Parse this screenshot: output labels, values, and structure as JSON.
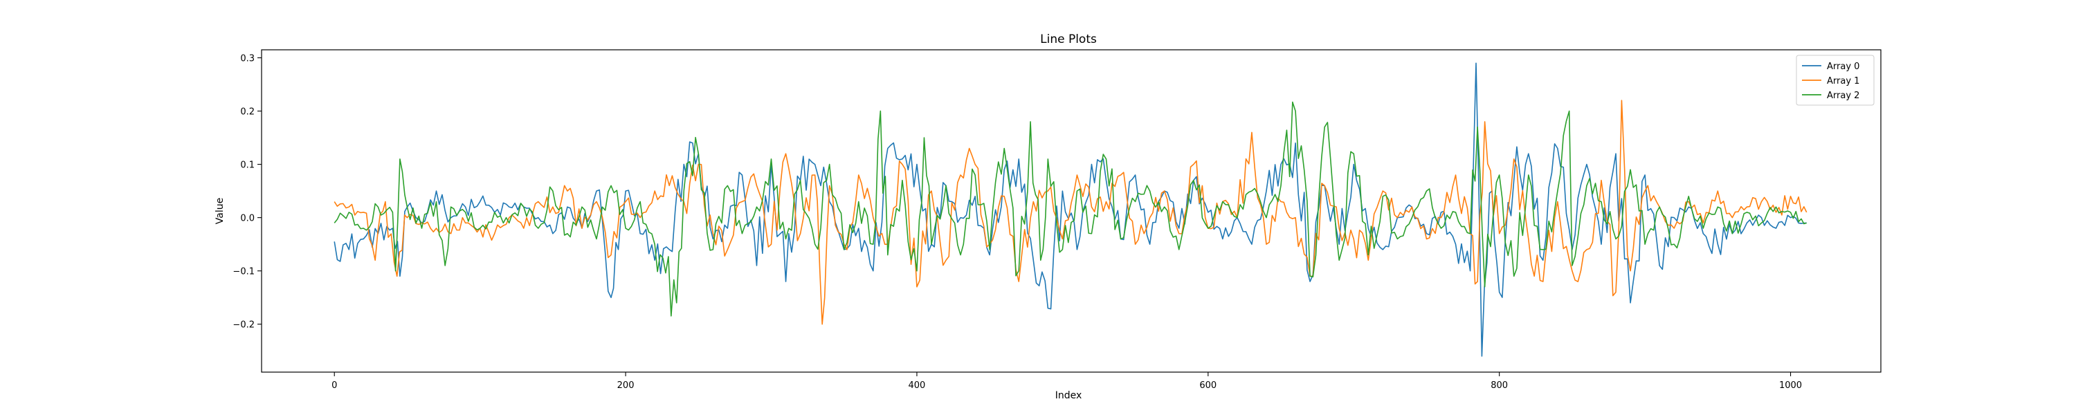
{
  "chart_data": {
    "type": "line",
    "title": "Line Plots",
    "xlabel": "Index",
    "ylabel": "Value",
    "xlim": [
      -50,
      1062
    ],
    "ylim": [
      -0.29,
      0.315
    ],
    "xticks": [
      0,
      200,
      400,
      600,
      800,
      1000
    ],
    "yticks": [
      -0.2,
      -0.1,
      0.0,
      0.1,
      0.2,
      0.3
    ],
    "ytick_labels": [
      "−0.2",
      "−0.1",
      "0.0",
      "0.1",
      "0.2",
      "0.3"
    ],
    "legend_position": "upper right",
    "x_count": 1012,
    "series": [
      {
        "name": "Array 0",
        "color": "#1f77b4",
        "x": [
          0,
          10,
          20,
          30,
          40,
          45,
          50,
          60,
          70,
          80,
          90,
          100,
          110,
          120,
          130,
          140,
          150,
          160,
          170,
          180,
          190,
          195,
          200,
          210,
          220,
          230,
          240,
          250,
          260,
          270,
          280,
          290,
          300,
          310,
          320,
          330,
          340,
          350,
          360,
          370,
          380,
          390,
          400,
          410,
          420,
          430,
          440,
          450,
          460,
          470,
          480,
          490,
          500,
          510,
          520,
          530,
          540,
          550,
          560,
          570,
          580,
          590,
          600,
          610,
          620,
          630,
          640,
          650,
          660,
          670,
          680,
          690,
          700,
          710,
          720,
          730,
          740,
          750,
          760,
          770,
          780,
          784,
          788,
          795,
          800,
          810,
          820,
          830,
          840,
          850,
          860,
          870,
          880,
          890,
          900,
          910,
          920,
          930,
          940,
          950,
          960,
          970,
          980,
          990,
          1000,
          1011
        ],
        "y": [
          -0.045,
          -0.06,
          -0.04,
          -0.03,
          -0.02,
          -0.11,
          0.02,
          -0.01,
          0.05,
          0.0,
          0.02,
          0.03,
          0.01,
          0.02,
          0.02,
          0.0,
          -0.03,
          0.02,
          -0.02,
          0.05,
          -0.15,
          -0.06,
          0.05,
          -0.03,
          -0.08,
          -0.06,
          0.1,
          0.12,
          -0.04,
          -0.02,
          0.08,
          -0.09,
          0.1,
          -0.12,
          0.07,
          0.1,
          0.03,
          -0.06,
          -0.02,
          -0.1,
          0.13,
          0.11,
          0.1,
          -0.05,
          0.06,
          0.0,
          0.04,
          -0.07,
          0.09,
          0.11,
          -0.08,
          -0.17,
          0.05,
          -0.06,
          0.1,
          0.07,
          -0.04,
          0.08,
          -0.05,
          0.05,
          -0.02,
          0.07,
          0.01,
          -0.04,
          0.0,
          -0.05,
          0.05,
          0.1,
          0.14,
          -0.12,
          0.06,
          -0.05,
          0.1,
          -0.02,
          -0.06,
          0.0,
          0.02,
          -0.03,
          0.01,
          -0.05,
          -0.1,
          0.29,
          -0.26,
          0.05,
          -0.14,
          0.07,
          0.12,
          -0.08,
          0.13,
          -0.06,
          0.1,
          -0.05,
          0.12,
          -0.16,
          0.08,
          -0.09,
          0.0,
          0.02,
          -0.03,
          -0.05,
          -0.03,
          -0.01,
          0.0,
          -0.02,
          0.0,
          -0.01
        ]
      },
      {
        "name": "Array 1",
        "color": "#ff7f0e",
        "x": [
          0,
          10,
          20,
          28,
          35,
          43,
          50,
          60,
          70,
          80,
          90,
          100,
          110,
          120,
          130,
          140,
          150,
          160,
          170,
          180,
          190,
          200,
          210,
          220,
          230,
          240,
          250,
          260,
          270,
          280,
          290,
          300,
          310,
          320,
          330,
          335,
          340,
          350,
          360,
          370,
          380,
          390,
          400,
          410,
          420,
          430,
          440,
          450,
          460,
          470,
          480,
          490,
          500,
          510,
          520,
          530,
          540,
          550,
          560,
          570,
          580,
          590,
          600,
          610,
          620,
          630,
          640,
          650,
          660,
          670,
          680,
          690,
          700,
          710,
          720,
          730,
          740,
          750,
          760,
          770,
          780,
          785,
          790,
          800,
          810,
          820,
          830,
          840,
          850,
          860,
          870,
          880,
          884,
          890,
          900,
          910,
          920,
          930,
          940,
          950,
          960,
          970,
          980,
          990,
          1000,
          1011
        ],
        "y": [
          0.03,
          0.02,
          0.01,
          -0.08,
          0.03,
          -0.11,
          0.0,
          -0.01,
          -0.02,
          -0.03,
          -0.01,
          -0.02,
          -0.03,
          0.0,
          -0.02,
          0.03,
          0.02,
          0.05,
          -0.02,
          0.03,
          -0.07,
          0.03,
          0.0,
          0.05,
          0.06,
          0.03,
          0.1,
          -0.03,
          -0.06,
          0.03,
          0.06,
          -0.05,
          0.12,
          -0.03,
          0.08,
          -0.2,
          0.06,
          -0.05,
          0.08,
          0.0,
          -0.05,
          0.1,
          -0.13,
          0.05,
          -0.08,
          0.08,
          0.1,
          -0.05,
          0.04,
          -0.12,
          0.03,
          0.05,
          -0.04,
          0.08,
          0.02,
          0.03,
          0.08,
          -0.05,
          0.0,
          0.05,
          -0.03,
          0.1,
          -0.02,
          0.03,
          0.0,
          0.16,
          -0.05,
          0.03,
          0.0,
          -0.11,
          0.06,
          -0.02,
          -0.04,
          -0.08,
          0.05,
          0.0,
          0.02,
          -0.04,
          0.0,
          0.08,
          -0.03,
          -0.12,
          0.18,
          -0.03,
          0.11,
          -0.04,
          -0.12,
          0.03,
          -0.1,
          -0.06,
          0.07,
          -0.14,
          0.22,
          -0.1,
          0.05,
          0.02,
          -0.02,
          0.03,
          -0.01,
          0.05,
          0.0,
          0.02,
          0.03,
          0.01,
          0.04,
          0.01
        ]
      },
      {
        "name": "Array 2",
        "color": "#2ca02c",
        "x": [
          0,
          10,
          20,
          30,
          40,
          42,
          45,
          50,
          60,
          70,
          76,
          80,
          90,
          100,
          110,
          120,
          130,
          140,
          150,
          160,
          170,
          180,
          190,
          200,
          210,
          220,
          235,
          240,
          250,
          260,
          270,
          280,
          290,
          300,
          310,
          320,
          330,
          340,
          350,
          360,
          370,
          375,
          380,
          390,
          400,
          405,
          410,
          420,
          430,
          440,
          450,
          460,
          470,
          478,
          485,
          490,
          500,
          510,
          520,
          530,
          540,
          550,
          560,
          570,
          580,
          590,
          600,
          610,
          620,
          630,
          640,
          650,
          660,
          670,
          680,
          690,
          700,
          710,
          720,
          730,
          740,
          750,
          760,
          770,
          780,
          785,
          790,
          800,
          810,
          820,
          830,
          840,
          848,
          850,
          860,
          870,
          880,
          890,
          900,
          910,
          920,
          930,
          940,
          950,
          960,
          970,
          980,
          990,
          1000,
          1011
        ],
        "y": [
          -0.01,
          0.01,
          -0.02,
          0.02,
          0.01,
          -0.1,
          0.11,
          0.02,
          -0.02,
          0.03,
          -0.09,
          0.02,
          0.01,
          -0.02,
          0.01,
          -0.01,
          0.02,
          -0.02,
          0.05,
          -0.03,
          0.02,
          -0.04,
          0.06,
          -0.02,
          0.03,
          -0.05,
          -0.16,
          0.05,
          0.12,
          -0.06,
          0.06,
          -0.03,
          0.02,
          0.11,
          -0.04,
          0.07,
          -0.05,
          0.1,
          -0.06,
          0.03,
          -0.05,
          0.2,
          -0.07,
          0.07,
          -0.1,
          0.15,
          -0.05,
          0.06,
          -0.07,
          0.08,
          -0.06,
          0.13,
          -0.1,
          0.18,
          -0.08,
          0.11,
          -0.06,
          0.05,
          -0.03,
          0.11,
          -0.04,
          0.03,
          0.05,
          0.02,
          -0.06,
          0.07,
          -0.02,
          0.03,
          0.0,
          0.05,
          0.0,
          0.06,
          0.2,
          -0.11,
          0.17,
          -0.08,
          0.12,
          -0.07,
          0.04,
          -0.04,
          0.0,
          0.05,
          -0.02,
          0.01,
          -0.03,
          0.17,
          -0.13,
          0.08,
          -0.11,
          0.08,
          -0.06,
          0.05,
          0.2,
          -0.09,
          0.06,
          0.03,
          -0.04,
          0.09,
          -0.05,
          0.02,
          -0.05,
          0.04,
          -0.02,
          0.02,
          -0.03,
          0.01,
          -0.01,
          0.02,
          0.01,
          -0.01
        ]
      }
    ]
  }
}
